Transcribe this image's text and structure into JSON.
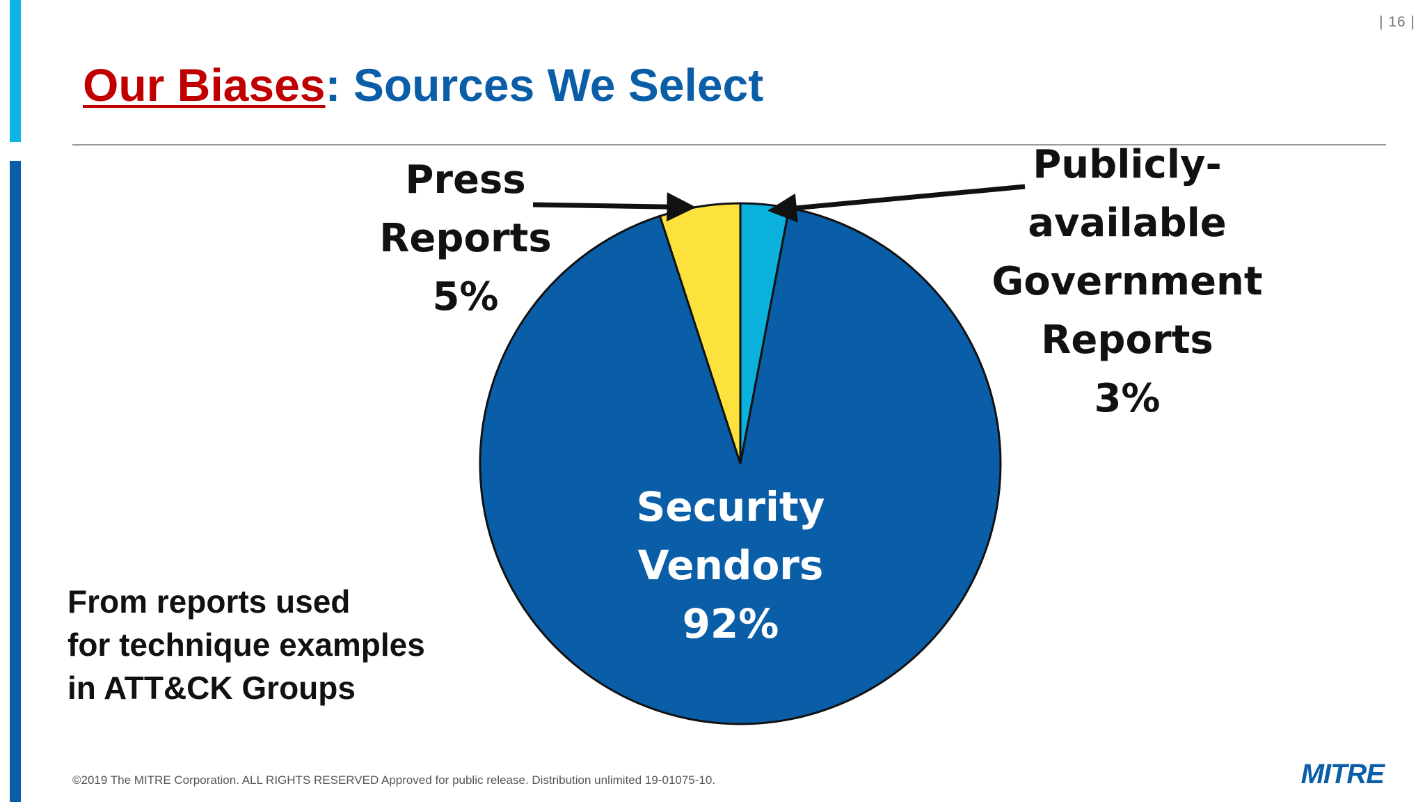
{
  "page": {
    "number": "| 16 |"
  },
  "header": {
    "title_red": "Our Biases",
    "title_blue": ": Sources We Select"
  },
  "chart_data": {
    "type": "pie",
    "title": "",
    "slices": [
      {
        "label": "Security Vendors",
        "value": 92,
        "color": "#0a5ea8",
        "label_lines": [
          "Security",
          "Vendors",
          "92%"
        ]
      },
      {
        "label": "Press Reports",
        "value": 5,
        "color": "#fde23e",
        "label_lines": [
          "Press",
          "Reports",
          "5%"
        ]
      },
      {
        "label": "Publicly-available Government Reports",
        "value": 3,
        "color": "#0bb1dd",
        "label_lines": [
          "Publicly-",
          "available",
          "Government",
          "Reports",
          "3%"
        ]
      }
    ]
  },
  "caption": {
    "lines": [
      "From reports used",
      "for technique examples",
      "in ATT&CK Groups"
    ]
  },
  "footer": {
    "text": "©2019 The MITRE Corporation. ALL RIGHTS RESERVED  Approved for public release. Distribution unlimited 19-01075-10."
  },
  "logo": {
    "text": "MITRE"
  }
}
